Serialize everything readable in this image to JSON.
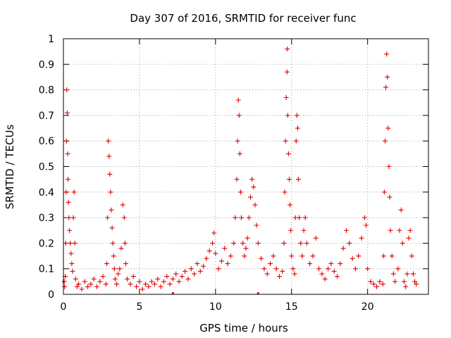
{
  "chart_data": {
    "type": "scatter",
    "title": "Day 307 of 2016, SRMTID for receiver func",
    "xlabel": "GPS time / hours",
    "ylabel": "SRMTID / TECUs",
    "xlim": [
      0,
      24
    ],
    "ylim": [
      0,
      1
    ],
    "x_ticks": [
      {
        "value": 0,
        "label": "0"
      },
      {
        "value": 5,
        "label": "5"
      },
      {
        "value": 10,
        "label": "10"
      },
      {
        "value": 15,
        "label": "15"
      },
      {
        "value": 20,
        "label": "20"
      }
    ],
    "y_ticks": [
      {
        "value": 0,
        "label": "0"
      },
      {
        "value": 0.1,
        "label": "0.1"
      },
      {
        "value": 0.2,
        "label": "0.2"
      },
      {
        "value": 0.3,
        "label": "0.3"
      },
      {
        "value": 0.4,
        "label": "0.4"
      },
      {
        "value": 0.5,
        "label": "0.5"
      },
      {
        "value": 0.6,
        "label": "0.6"
      },
      {
        "value": 0.7,
        "label": "0.7"
      },
      {
        "value": 0.8,
        "label": "0.8"
      },
      {
        "value": 0.9,
        "label": "0.9"
      },
      {
        "value": 1,
        "label": "1"
      }
    ],
    "grid": true,
    "legend": "none",
    "marker": "plus",
    "series_color": "#e00000",
    "series": [
      {
        "name": "SRMTID",
        "points": [
          [
            0.05,
            0.05
          ],
          [
            0.08,
            0.03
          ],
          [
            0.12,
            0.07
          ],
          [
            0.15,
            0.2
          ],
          [
            0.18,
            0.4
          ],
          [
            0.2,
            0.6
          ],
          [
            0.22,
            0.8
          ],
          [
            0.25,
            0.71
          ],
          [
            0.28,
            0.55
          ],
          [
            0.3,
            0.45
          ],
          [
            0.33,
            0.36
          ],
          [
            0.36,
            0.3
          ],
          [
            0.4,
            0.25
          ],
          [
            0.45,
            0.2
          ],
          [
            0.5,
            0.16
          ],
          [
            0.55,
            0.12
          ],
          [
            0.6,
            0.09
          ],
          [
            0.65,
            0.3
          ],
          [
            0.7,
            0.4
          ],
          [
            0.75,
            0.2
          ],
          [
            0.8,
            0.06
          ],
          [
            0.9,
            0.03
          ],
          [
            1.0,
            0.04
          ],
          [
            1.2,
            0.02
          ],
          [
            1.4,
            0.05
          ],
          [
            1.6,
            0.03
          ],
          [
            1.8,
            0.04
          ],
          [
            2.0,
            0.06
          ],
          [
            2.2,
            0.03
          ],
          [
            2.4,
            0.05
          ],
          [
            2.6,
            0.07
          ],
          [
            2.8,
            0.04
          ],
          [
            2.85,
            0.12
          ],
          [
            2.9,
            0.3
          ],
          [
            2.95,
            0.6
          ],
          [
            3.0,
            0.54
          ],
          [
            3.05,
            0.47
          ],
          [
            3.1,
            0.4
          ],
          [
            3.15,
            0.33
          ],
          [
            3.2,
            0.26
          ],
          [
            3.25,
            0.2
          ],
          [
            3.3,
            0.15
          ],
          [
            3.35,
            0.1
          ],
          [
            3.4,
            0.06
          ],
          [
            3.5,
            0.04
          ],
          [
            3.6,
            0.08
          ],
          [
            3.7,
            0.1
          ],
          [
            3.8,
            0.18
          ],
          [
            3.9,
            0.35
          ],
          [
            4.0,
            0.3
          ],
          [
            4.05,
            0.2
          ],
          [
            4.1,
            0.12
          ],
          [
            4.2,
            0.06
          ],
          [
            4.4,
            0.04
          ],
          [
            4.6,
            0.07
          ],
          [
            4.8,
            0.03
          ],
          [
            5.0,
            0.05
          ],
          [
            5.2,
            0.02
          ],
          [
            5.4,
            0.04
          ],
          [
            5.6,
            0.03
          ],
          [
            5.8,
            0.05
          ],
          [
            6.0,
            0.04
          ],
          [
            6.2,
            0.06
          ],
          [
            6.4,
            0.03
          ],
          [
            6.6,
            0.05
          ],
          [
            6.8,
            0.07
          ],
          [
            7.0,
            0.04
          ],
          [
            7.2,
            0.06
          ],
          [
            7.4,
            0.08
          ],
          [
            7.6,
            0.05
          ],
          [
            7.8,
            0.07
          ],
          [
            8.0,
            0.09
          ],
          [
            8.2,
            0.06
          ],
          [
            8.4,
            0.1
          ],
          [
            8.6,
            0.08
          ],
          [
            8.8,
            0.12
          ],
          [
            9.0,
            0.09
          ],
          [
            9.2,
            0.11
          ],
          [
            9.4,
            0.14
          ],
          [
            9.6,
            0.17
          ],
          [
            9.8,
            0.2
          ],
          [
            9.9,
            0.24
          ],
          [
            10.0,
            0.16
          ],
          [
            10.2,
            0.1
          ],
          [
            10.4,
            0.13
          ],
          [
            10.6,
            0.18
          ],
          [
            10.8,
            0.12
          ],
          [
            11.0,
            0.15
          ],
          [
            11.2,
            0.2
          ],
          [
            11.3,
            0.3
          ],
          [
            11.4,
            0.45
          ],
          [
            11.45,
            0.6
          ],
          [
            11.5,
            0.76
          ],
          [
            11.55,
            0.7
          ],
          [
            11.6,
            0.55
          ],
          [
            11.65,
            0.4
          ],
          [
            11.7,
            0.3
          ],
          [
            11.8,
            0.2
          ],
          [
            11.9,
            0.15
          ],
          [
            12.0,
            0.18
          ],
          [
            12.1,
            0.22
          ],
          [
            12.2,
            0.3
          ],
          [
            12.3,
            0.38
          ],
          [
            12.4,
            0.45
          ],
          [
            12.5,
            0.42
          ],
          [
            12.6,
            0.35
          ],
          [
            12.7,
            0.27
          ],
          [
            12.8,
            0.2
          ],
          [
            13.0,
            0.14
          ],
          [
            13.2,
            0.1
          ],
          [
            13.4,
            0.08
          ],
          [
            13.6,
            0.12
          ],
          [
            13.8,
            0.15
          ],
          [
            14.0,
            0.1
          ],
          [
            14.2,
            0.07
          ],
          [
            14.4,
            0.09
          ],
          [
            14.5,
            0.2
          ],
          [
            14.55,
            0.4
          ],
          [
            14.6,
            0.6
          ],
          [
            14.65,
            0.77
          ],
          [
            14.7,
            0.87
          ],
          [
            14.72,
            0.96
          ],
          [
            14.75,
            0.7
          ],
          [
            14.8,
            0.55
          ],
          [
            14.85,
            0.45
          ],
          [
            14.9,
            0.35
          ],
          [
            14.95,
            0.25
          ],
          [
            15.0,
            0.15
          ],
          [
            15.1,
            0.1
          ],
          [
            15.2,
            0.08
          ],
          [
            15.25,
            0.3
          ],
          [
            15.3,
            0.6
          ],
          [
            15.35,
            0.7
          ],
          [
            15.4,
            0.65
          ],
          [
            15.45,
            0.45
          ],
          [
            15.5,
            0.3
          ],
          [
            15.6,
            0.2
          ],
          [
            15.7,
            0.15
          ],
          [
            15.8,
            0.25
          ],
          [
            15.9,
            0.3
          ],
          [
            16.0,
            0.2
          ],
          [
            16.2,
            0.12
          ],
          [
            16.4,
            0.15
          ],
          [
            16.6,
            0.22
          ],
          [
            16.8,
            0.1
          ],
          [
            17.0,
            0.08
          ],
          [
            17.2,
            0.06
          ],
          [
            17.4,
            0.1
          ],
          [
            17.6,
            0.12
          ],
          [
            17.8,
            0.09
          ],
          [
            18.0,
            0.07
          ],
          [
            18.2,
            0.12
          ],
          [
            18.4,
            0.18
          ],
          [
            18.6,
            0.25
          ],
          [
            18.8,
            0.2
          ],
          [
            19.0,
            0.14
          ],
          [
            19.2,
            0.1
          ],
          [
            19.4,
            0.15
          ],
          [
            19.6,
            0.22
          ],
          [
            19.8,
            0.3
          ],
          [
            19.9,
            0.27
          ],
          [
            20.0,
            0.1
          ],
          [
            20.2,
            0.05
          ],
          [
            20.4,
            0.04
          ],
          [
            20.6,
            0.03
          ],
          [
            20.8,
            0.05
          ],
          [
            21.0,
            0.04
          ],
          [
            21.05,
            0.15
          ],
          [
            21.1,
            0.4
          ],
          [
            21.15,
            0.6
          ],
          [
            21.2,
            0.81
          ],
          [
            21.25,
            0.94
          ],
          [
            21.3,
            0.85
          ],
          [
            21.35,
            0.65
          ],
          [
            21.4,
            0.5
          ],
          [
            21.45,
            0.38
          ],
          [
            21.5,
            0.25
          ],
          [
            21.6,
            0.15
          ],
          [
            21.7,
            0.08
          ],
          [
            21.8,
            0.05
          ],
          [
            22.0,
            0.1
          ],
          [
            22.1,
            0.25
          ],
          [
            22.2,
            0.33
          ],
          [
            22.3,
            0.2
          ],
          [
            22.4,
            0.05
          ],
          [
            22.5,
            0.03
          ],
          [
            22.6,
            0.08
          ],
          [
            22.7,
            0.22
          ],
          [
            22.8,
            0.25
          ],
          [
            22.9,
            0.15
          ],
          [
            23.0,
            0.08
          ],
          [
            23.1,
            0.05
          ],
          [
            23.2,
            0.04
          ]
        ]
      }
    ],
    "extra_marks": [
      [
        7.2,
        0.0
      ],
      [
        12.8,
        0.0
      ]
    ]
  }
}
